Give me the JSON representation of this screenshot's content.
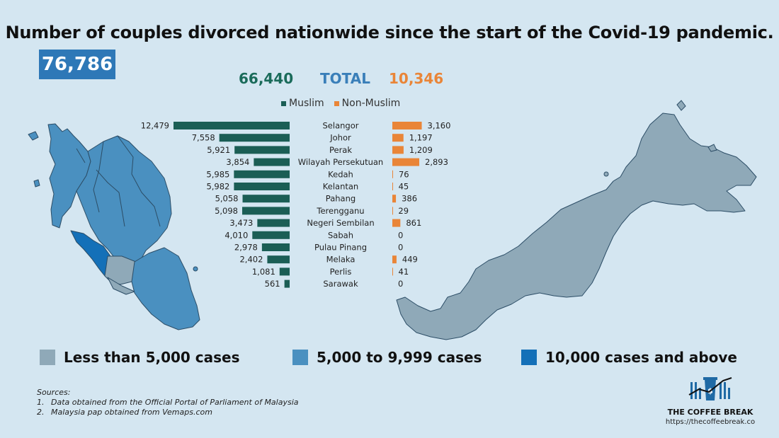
{
  "title": "Number of couples divorced nationwide since the start of the Covid-19 pandemic.",
  "grand_total": "76,786",
  "totals": {
    "muslim": "66,440",
    "label": "TOTAL",
    "non_muslim": "10,346"
  },
  "legend_top": {
    "muslim": "Muslim",
    "non_muslim": "Non-Muslim"
  },
  "colors": {
    "muslim": "#1b5e55",
    "non_muslim": "#e98538",
    "less_5000": "#8fa9b8",
    "mid": "#4a90c0",
    "above_10000": "#1470b8",
    "background": "#d4e6f1"
  },
  "chart_data": {
    "type": "bar",
    "categories": [
      "Selangor",
      "Johor",
      "Perak",
      "Wilayah Persekutuan",
      "Kedah",
      "Kelantan",
      "Pahang",
      "Terengganu",
      "Negeri Sembilan",
      "Sabah",
      "Pulau Pinang",
      "Melaka",
      "Perlis",
      "Sarawak"
    ],
    "series": [
      {
        "name": "Muslim",
        "values": [
          12479,
          7558,
          5921,
          3854,
          5985,
          5982,
          5058,
          5098,
          3473,
          4010,
          2978,
          2402,
          1081,
          561
        ],
        "labels": [
          "12,479",
          "7,558",
          "5,921",
          "3,854",
          "5,985",
          "5,982",
          "5,058",
          "5,098",
          "3,473",
          "4,010",
          "2,978",
          "2,402",
          "1,081",
          "561"
        ]
      },
      {
        "name": "Non-Muslim",
        "values": [
          3160,
          1197,
          1209,
          2893,
          76,
          45,
          386,
          29,
          861,
          0,
          0,
          449,
          41,
          0
        ],
        "labels": [
          "3,160",
          "1,197",
          "1,209",
          "2,893",
          "76",
          "45",
          "386",
          "29",
          "861",
          "0",
          "0",
          "449",
          "41",
          "0"
        ]
      }
    ]
  },
  "legend_bottom": [
    {
      "label": "Less than 5,000 cases",
      "color": "#8fa9b8"
    },
    {
      "label": "5,000 to 9,999 cases",
      "color": "#4a90c0"
    },
    {
      "label": "10,000 cases and above",
      "color": "#1470b8"
    }
  ],
  "sources": {
    "heading": "Sources:",
    "items": [
      {
        "num": "1.",
        "text": "Data obtained from the Official Portal of Parliament of Malaysia"
      },
      {
        "num": "2.",
        "text": "Malaysia pap obtained from Vemaps.com"
      }
    ]
  },
  "brand": {
    "name": "THE COFFEE BREAK",
    "url": "https://thecoffeebreak.co"
  }
}
